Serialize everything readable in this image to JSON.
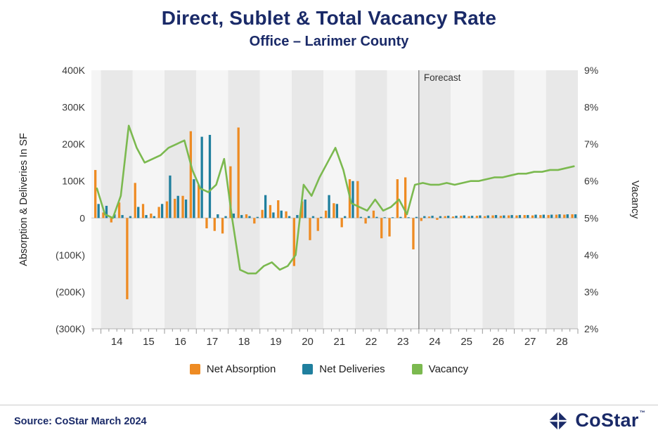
{
  "source": "Source: CoStar March 2024",
  "logo": {
    "text": "CoStar",
    "tm": "™"
  },
  "colors": {
    "net_absorption": "#EE8B23",
    "net_deliveries": "#1F7F9E",
    "vacancy": "#7BB94F",
    "navy": "#1A2A68",
    "band_dark": "#E8E8E8",
    "band_light": "#F5F5F5",
    "forecast_line": "#555555"
  },
  "legend": {
    "items": [
      {
        "label": "Net Absorption",
        "color_key": "net_absorption"
      },
      {
        "label": "Net Deliveries",
        "color_key": "net_deliveries"
      },
      {
        "label": "Vacancy",
        "color_key": "vacancy"
      }
    ]
  },
  "chart_data": {
    "type": "bar+line combo",
    "title": "Direct, Sublet & Total Vacancy Rate",
    "subtitle": "Office – Larimer County",
    "left_axis_title": "Absorption & Deliveries In SF",
    "right_axis_title": "Vacancy",
    "forecast_label": "Forecast",
    "forecast_starts_at_period": "24Q1",
    "left_axis_range_sf": [
      -300000,
      400000
    ],
    "right_axis_range_pct": [
      2,
      9
    ],
    "left_axis_ticks": [
      "400K",
      "300K",
      "200K",
      "100K",
      "0",
      "(100K)",
      "(200K)",
      "(300K)"
    ],
    "right_axis_ticks": [
      "9%",
      "8%",
      "7%",
      "6%",
      "5%",
      "4%",
      "3%",
      "2%"
    ],
    "x_labels": [
      "14",
      "15",
      "16",
      "17",
      "18",
      "19",
      "20",
      "21",
      "22",
      "23",
      "24",
      "25",
      "26",
      "27",
      "28"
    ],
    "periods": [
      "13Q4",
      "14Q1",
      "14Q2",
      "14Q3",
      "14Q4",
      "15Q1",
      "15Q2",
      "15Q3",
      "15Q4",
      "16Q1",
      "16Q2",
      "16Q3",
      "16Q4",
      "17Q1",
      "17Q2",
      "17Q3",
      "17Q4",
      "18Q1",
      "18Q2",
      "18Q3",
      "18Q4",
      "19Q1",
      "19Q2",
      "19Q3",
      "19Q4",
      "20Q1",
      "20Q2",
      "20Q3",
      "20Q4",
      "21Q1",
      "21Q2",
      "21Q3",
      "21Q4",
      "22Q1",
      "22Q2",
      "22Q3",
      "22Q4",
      "23Q1",
      "23Q2",
      "23Q3",
      "23Q4",
      "24Q1",
      "24Q2",
      "24Q3",
      "24Q4",
      "25Q1",
      "25Q2",
      "25Q3",
      "25Q4",
      "26Q1",
      "26Q2",
      "26Q3",
      "26Q4",
      "27Q1",
      "27Q2",
      "27Q3",
      "27Q4",
      "28Q1",
      "28Q2",
      "28Q3",
      "28Q4"
    ],
    "series": [
      {
        "name": "Net Absorption",
        "type": "bar",
        "axis": "left",
        "values_sf": [
          130000,
          15000,
          -12000,
          42000,
          -220000,
          95000,
          38000,
          12000,
          30000,
          45000,
          52000,
          60000,
          235000,
          90000,
          -28000,
          -35000,
          -42000,
          140000,
          245000,
          10000,
          -15000,
          22000,
          35000,
          48000,
          18000,
          -130000,
          45000,
          -60000,
          -35000,
          20000,
          40000,
          -25000,
          105000,
          100000,
          -15000,
          20000,
          -55000,
          -50000,
          105000,
          110000,
          -85000,
          -8000,
          4000,
          -5000,
          5000,
          4000,
          6000,
          5000,
          6000,
          5000,
          7000,
          6000,
          7000,
          7000,
          8000,
          7000,
          8000,
          8000,
          9000,
          9000,
          10000
        ]
      },
      {
        "name": "Net Deliveries",
        "type": "bar",
        "axis": "left",
        "values_sf": [
          38000,
          33000,
          10000,
          8000,
          5000,
          30000,
          8000,
          5000,
          38000,
          115000,
          60000,
          50000,
          105000,
          220000,
          225000,
          10000,
          5000,
          12000,
          8000,
          5000,
          3000,
          62000,
          15000,
          20000,
          5000,
          8000,
          50000,
          5000,
          3000,
          62000,
          38000,
          5000,
          100000,
          3000,
          5000,
          3000,
          2000,
          2000,
          3000,
          2000,
          3000,
          5000,
          6000,
          5000,
          6000,
          6000,
          7000,
          6000,
          7000,
          7000,
          8000,
          7000,
          8000,
          8000,
          8000,
          9000,
          9000,
          9000,
          10000,
          10000,
          10000
        ]
      },
      {
        "name": "Vacancy",
        "type": "line",
        "axis": "right",
        "values_pct": [
          5.8,
          5.1,
          5.0,
          5.6,
          7.5,
          6.9,
          6.5,
          6.6,
          6.7,
          6.9,
          7.0,
          7.1,
          6.3,
          5.8,
          5.7,
          5.9,
          6.6,
          5.0,
          3.6,
          3.5,
          3.5,
          3.7,
          3.8,
          3.6,
          3.7,
          4.0,
          5.9,
          5.6,
          6.1,
          6.5,
          6.9,
          6.3,
          5.4,
          5.3,
          5.2,
          5.5,
          5.2,
          5.3,
          5.5,
          5.1,
          5.9,
          5.95,
          5.9,
          5.9,
          5.95,
          5.9,
          5.95,
          6.0,
          6.0,
          6.05,
          6.1,
          6.1,
          6.15,
          6.2,
          6.2,
          6.25,
          6.25,
          6.3,
          6.3,
          6.35,
          6.4
        ]
      }
    ]
  }
}
